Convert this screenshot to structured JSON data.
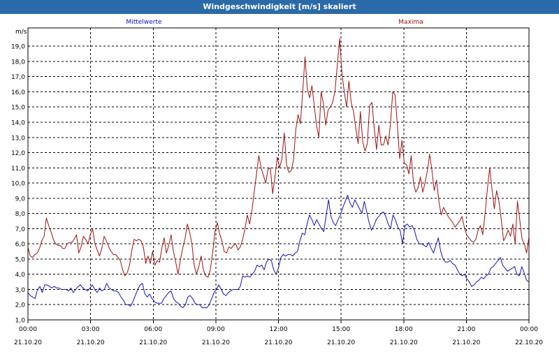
{
  "window": {
    "title": "Windgeschwindigkeit [m/s] skaliert"
  },
  "chart_data": {
    "type": "line",
    "title": "Windgeschwindigkeit [m/s] skaliert",
    "ylabel": "m/s",
    "ylim": [
      1.0,
      20.2
    ],
    "yticks": [
      "1,0",
      "2,0",
      "3,0",
      "4,0",
      "5,0",
      "6,0",
      "7,0",
      "8,0",
      "9,0",
      "10,0",
      "11,0",
      "12,0",
      "13,0",
      "14,0",
      "15,0",
      "16,0",
      "17,0",
      "18,0",
      "19,0"
    ],
    "xlim": [
      0,
      24
    ],
    "xticks": [
      {
        "time": "00:00",
        "date": "21.10.20"
      },
      {
        "time": "03:00",
        "date": "21.10.20"
      },
      {
        "time": "06:00",
        "date": "21.10.20"
      },
      {
        "time": "09:00",
        "date": "21.10.20"
      },
      {
        "time": "12:00",
        "date": "21.10.20"
      },
      {
        "time": "15:00",
        "date": "21.10.20"
      },
      {
        "time": "18:00",
        "date": "21.10.20"
      },
      {
        "time": "21:00",
        "date": "21.10.20"
      },
      {
        "time": "00:00",
        "date": "22.10.20"
      }
    ],
    "grid": true,
    "series": [
      {
        "name": "Mittelwerte",
        "color": "#1010c8",
        "x": [
          0.0,
          0.3,
          0.5,
          0.8,
          1.0,
          1.3,
          1.5,
          1.8,
          2.0,
          2.3,
          2.5,
          2.8,
          3.0,
          3.3,
          3.5,
          3.8,
          4.0,
          4.3,
          4.5,
          4.8,
          5.0,
          5.3,
          5.5,
          5.8,
          6.0,
          6.3,
          6.5,
          6.8,
          7.0,
          7.3,
          7.5,
          7.8,
          8.0,
          8.3,
          8.5,
          8.8,
          9.0,
          9.3,
          9.5,
          9.8,
          10.0,
          10.3,
          10.5,
          10.8,
          11.0,
          11.3,
          11.5,
          11.8,
          12.0,
          12.3,
          12.5,
          12.8,
          13.0,
          13.3,
          13.5,
          13.8,
          14.0,
          14.3,
          14.5,
          14.8,
          15.0,
          15.3,
          15.5,
          15.8,
          16.0,
          16.3,
          16.5,
          16.8,
          17.0,
          17.3,
          17.5,
          17.8,
          18.0,
          18.3,
          18.5,
          18.8,
          19.0,
          19.3,
          19.5,
          19.8,
          20.0,
          20.3,
          20.5,
          20.8,
          21.0,
          21.3,
          21.5,
          21.8,
          22.0,
          22.3,
          22.5,
          22.8,
          23.0,
          23.3,
          23.5,
          23.8
        ],
        "values": [
          2.8,
          2.5,
          3.1,
          3.3,
          3.2,
          3.1,
          3.0,
          3.0,
          2.9,
          3.3,
          3.0,
          3.1,
          2.9,
          2.8,
          3.2,
          3.0,
          2.9,
          2.4,
          2.0,
          2.1,
          2.9,
          3.1,
          2.5,
          2.2,
          2.0,
          2.4,
          2.9,
          2.2,
          1.9,
          2.4,
          2.6,
          2.1,
          1.8,
          1.9,
          2.4,
          2.9,
          3.2,
          2.6,
          2.8,
          3.0,
          3.0,
          3.9,
          3.8,
          4.1,
          4.6,
          4.5,
          4.9,
          4.0,
          5.2,
          5.3,
          5.4,
          5.5,
          6.5,
          7.9,
          7.6,
          7.2,
          6.8,
          8.9,
          7.6,
          7.3,
          8.1,
          9.2,
          8.7,
          8.4,
          8.9,
          8.0,
          7.4,
          7.0,
          7.8,
          7.9,
          7.7,
          7.0,
          7.3,
          6.9,
          6.1,
          6.0,
          5.8,
          5.8,
          5.0,
          4.8,
          4.6,
          4.2,
          4.0,
          3.9,
          3.5,
          3.3,
          3.6,
          3.7,
          4.1,
          4.5,
          5.0,
          4.4,
          4.3,
          4.4,
          4.0,
          3.6
        ],
        "dense": [
          2.8,
          2.6,
          2.5,
          2.4,
          3.0,
          3.2,
          2.8,
          3.3,
          3.3,
          3.2,
          3.1,
          3.2,
          3.1,
          3.1,
          3.0,
          3.0,
          3.0,
          2.9,
          3.1,
          2.8,
          3.0,
          3.2,
          3.3,
          3.1,
          3.0,
          2.9,
          3.1,
          3.3,
          3.0,
          2.8,
          3.1,
          2.9,
          3.0,
          3.4,
          3.1,
          3.0,
          2.9,
          2.9,
          2.8,
          2.5,
          2.3,
          2.0,
          2.0,
          1.9,
          2.2,
          2.6,
          3.0,
          3.3,
          3.4,
          2.7,
          2.5,
          2.7,
          2.4,
          2.2,
          2.1,
          2.1,
          2.1,
          2.4,
          2.6,
          2.8,
          2.9,
          2.4,
          2.2,
          2.1,
          1.9,
          1.8,
          2.0,
          2.5,
          2.6,
          2.4,
          2.1,
          2.0,
          2.0,
          1.8,
          1.8,
          1.8,
          2.0,
          2.4,
          2.8,
          3.0,
          3.3,
          3.0,
          2.7,
          2.6,
          2.8,
          2.9,
          3.0,
          3.0,
          3.0,
          3.2,
          3.9,
          3.8,
          3.9,
          3.8,
          4.0,
          4.2,
          4.6,
          4.5,
          4.6,
          4.3,
          4.8,
          5.0,
          4.9,
          4.3,
          4.0,
          4.4,
          5.1,
          5.3,
          5.2,
          5.3,
          5.3,
          5.2,
          5.4,
          5.5,
          6.2,
          6.7,
          6.6,
          7.3,
          7.9,
          7.6,
          7.2,
          7.6,
          7.3,
          7.0,
          6.8,
          7.9,
          8.9,
          7.8,
          7.4,
          7.2,
          7.6,
          7.9,
          8.4,
          8.8,
          9.2,
          8.7,
          8.4,
          8.9,
          8.6,
          8.3,
          8.0,
          8.8,
          8.1,
          7.4,
          6.9,
          7.2,
          7.6,
          7.8,
          8.0,
          8.1,
          7.8,
          7.3,
          7.0,
          7.9,
          7.6,
          7.1,
          6.9,
          6.0,
          7.2,
          7.3,
          7.1,
          7.2,
          6.9,
          6.3,
          6.0,
          6.0,
          5.9,
          5.8,
          6.1,
          5.7,
          5.4,
          5.9,
          6.4,
          5.5,
          5.0,
          4.8,
          4.8,
          4.9,
          4.7,
          4.6,
          4.3,
          4.0,
          3.9,
          4.0,
          3.7,
          3.5,
          3.2,
          3.3,
          3.5,
          3.6,
          3.8,
          3.7,
          3.9,
          4.0,
          4.4,
          4.5,
          4.7,
          4.9,
          5.1,
          4.6,
          4.4,
          4.2,
          4.3,
          4.4,
          4.5,
          4.0,
          3.9,
          4.5,
          4.1,
          3.6,
          3.5
        ]
      },
      {
        "name": "Maxima",
        "color": "#a01010",
        "values": [
          5.8,
          5.2,
          5.1,
          5.3,
          5.4,
          5.7,
          6.2,
          6.5,
          7.7,
          7.2,
          6.8,
          6.3,
          6.0,
          5.9,
          5.9,
          5.7,
          5.7,
          6.0,
          6.1,
          6.1,
          6.3,
          6.6,
          5.4,
          5.8,
          6.5,
          6.3,
          6.0,
          6.6,
          7.0,
          6.0,
          5.6,
          5.2,
          5.7,
          6.5,
          6.2,
          5.8,
          5.5,
          5.3,
          5.3,
          5.1,
          4.9,
          4.3,
          3.9,
          4.1,
          4.6,
          5.6,
          6.3,
          6.2,
          6.3,
          6.2,
          5.8,
          4.7,
          5.2,
          4.7,
          5.5,
          4.6,
          4.9,
          4.8,
          5.7,
          6.4,
          5.4,
          5.9,
          6.6,
          5.5,
          4.8,
          4.0,
          4.9,
          5.7,
          6.3,
          7.3,
          6.8,
          6.0,
          4.6,
          4.0,
          4.5,
          5.2,
          4.3,
          3.9,
          3.8,
          4.3,
          5.4,
          6.8,
          7.4,
          6.7,
          6.2,
          5.5,
          5.4,
          5.8,
          5.7,
          5.9,
          6.0,
          5.6,
          5.8,
          6.3,
          7.0,
          7.9,
          7.3,
          8.2,
          9.4,
          10.6,
          11.8,
          11.0,
          10.5,
          10.0,
          10.9,
          11.0,
          9.3,
          10.4,
          11.7,
          11.0,
          11.6,
          13.3,
          11.2,
          10.7,
          10.8,
          11.5,
          13.5,
          14.5,
          13.9,
          16.0,
          18.3,
          16.2,
          15.6,
          16.4,
          15.1,
          13.8,
          13.0,
          16.0,
          15.2,
          13.8,
          14.8,
          15.0,
          15.3,
          16.1,
          17.8,
          19.5,
          17.2,
          16.0,
          15.0,
          16.7,
          15.3,
          14.7,
          13.6,
          12.6,
          14.7,
          12.7,
          12.1,
          12.6,
          15.1,
          15.3,
          13.6,
          12.2,
          13.8,
          12.5,
          12.5,
          13.1,
          12.5,
          13.9,
          16.0,
          15.8,
          13.8,
          11.6,
          12.8,
          11.3,
          11.2,
          10.6,
          11.8,
          10.0,
          9.4,
          9.7,
          10.4,
          9.4,
          10.0,
          10.8,
          11.9,
          10.8,
          9.5,
          10.2,
          8.8,
          7.9,
          8.4,
          8.1,
          7.8,
          7.6,
          7.4,
          7.1,
          7.3,
          7.5,
          7.8,
          7.1,
          6.6,
          6.4,
          6.2,
          6.1,
          6.3,
          6.9,
          7.2,
          6.6,
          8.0,
          9.6,
          11.0,
          9.6,
          8.3,
          9.5,
          8.8,
          7.6,
          6.2,
          6.5,
          6.9,
          6.5,
          7.3,
          6.0,
          8.8,
          7.6,
          6.3,
          6.0,
          5.4,
          6.5
        ]
      }
    ]
  }
}
